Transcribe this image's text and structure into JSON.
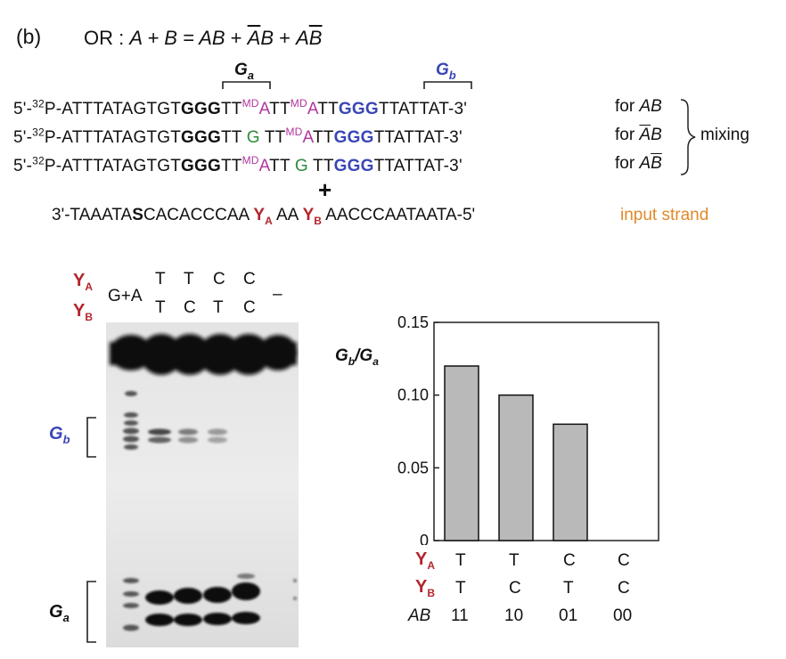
{
  "panel_label": "(b)",
  "equation": {
    "prefix": "OR : ",
    "lhs": "A + B = ",
    "t1": "AB",
    "plus1": " + ",
    "t2a": "A",
    "t2b": "B",
    "plus2": " + ",
    "t3a": "A",
    "t3b": "B"
  },
  "bracket_labels": {
    "ga": "G",
    "ga_sub": "a",
    "gb": "G",
    "gb_sub": "b"
  },
  "strands": [
    {
      "p1": "5'-",
      "sup": "32",
      "p2": "P-ATTTATAGTGT",
      "bold": "GGG",
      "p3": "TT",
      "s1sup": "MD",
      "s1": "A",
      "mid": "TT",
      "s2sup": "MD",
      "s2": "A",
      "p4": "TT",
      "blue": "GGG",
      "p5": "TTATTAT-3'",
      "for_label": "for ",
      "for_a": "A",
      "for_b": "B"
    },
    {
      "p1": "5'-",
      "sup": "32",
      "p2": "P-ATTTATAGTGT",
      "bold": "GGG",
      "p3": "TT ",
      "s1sup": "",
      "s1": "G",
      "mid": " TT",
      "s2sup": "MD",
      "s2": "A",
      "p4": "TT",
      "blue": "GGG",
      "p5": "TTATTAT-3'",
      "for_label": "for ",
      "for_a": "A",
      "for_b": "B"
    },
    {
      "p1": "5'-",
      "sup": "32",
      "p2": "P-ATTTATAGTGT",
      "bold": "GGG",
      "p3": "TT",
      "s1sup": "MD",
      "s1": "A",
      "mid": "TT ",
      "s2sup": "",
      "s2": "G",
      "p4": " TT",
      "blue": "GGG",
      "p5": "TTATTAT-3'",
      "for_label": "for ",
      "for_a": "A",
      "for_b": "B"
    }
  ],
  "mixing_label": "mixing",
  "plus_sign": "+",
  "input_strand": {
    "p1": "3'-TAAATA",
    "bold": "S",
    "p2": "CACACCCAA ",
    "ya": "Y",
    "ya_sub": "A",
    "mid": " AA ",
    "yb": "Y",
    "yb_sub": "B",
    "p3": "  AACCCAATAATA-5'",
    "label": "input strand"
  },
  "gel": {
    "ya": "Y",
    "ya_sub": "A",
    "yb": "Y",
    "yb_sub": "B",
    "marker_lane": "G+A",
    "lanes_top": [
      "T",
      "T",
      "C",
      "C"
    ],
    "lanes_bottom": [
      "T",
      "C",
      "T",
      "C"
    ],
    "control_lane": "–",
    "gb_label": "G",
    "gb_sub": "b",
    "ga_label": "G",
    "ga_sub": "a",
    "gb_band_intensity": [
      0.9,
      0.6,
      0.45,
      0.0
    ]
  },
  "chart_data": {
    "type": "bar",
    "categories": [
      "11",
      "10",
      "01",
      "00"
    ],
    "values": [
      0.12,
      0.1,
      0.08,
      0.0
    ],
    "ylabel_main": "G",
    "ylabel_sub1": "b",
    "ylabel_sep": "/",
    "ylabel_main2": "G",
    "ylabel_sub2": "a",
    "ylim": [
      0,
      0.15
    ],
    "yticks": [
      "0",
      "0.05",
      "0.10",
      "0.15"
    ],
    "row_ya": {
      "label": "Y",
      "sub": "A",
      "values": [
        "T",
        "T",
        "C",
        "C"
      ]
    },
    "row_yb": {
      "label": "Y",
      "sub": "B",
      "values": [
        "T",
        "C",
        "T",
        "C"
      ]
    },
    "row_ab": {
      "label": "AB",
      "values": [
        "11",
        "10",
        "01",
        "00"
      ]
    },
    "bar_color": "#b9b9b9"
  }
}
